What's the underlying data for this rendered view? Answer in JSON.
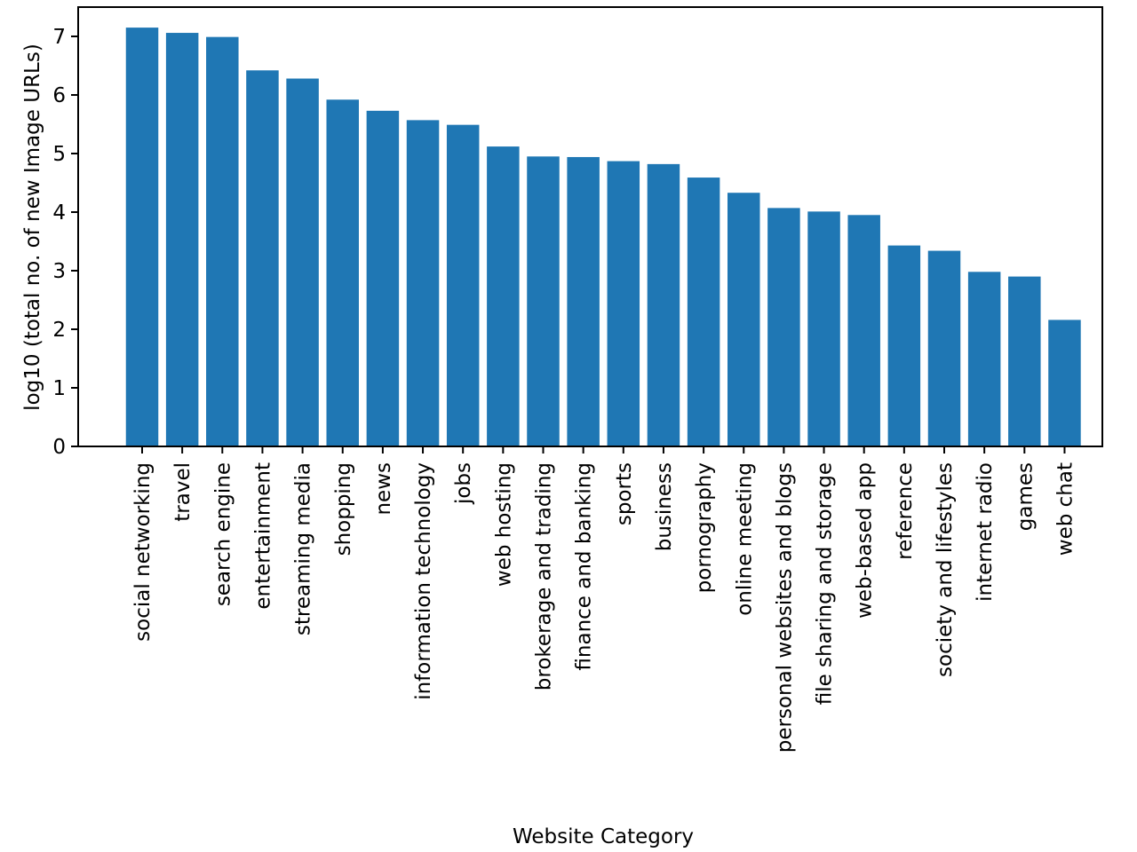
{
  "chart_data": {
    "type": "bar",
    "title": "",
    "xlabel": "Website Category",
    "ylabel": "log10 (total no. of new Image URLs)",
    "ylim": [
      0,
      7.5
    ],
    "yticks": [
      "0",
      "1",
      "2",
      "3",
      "4",
      "5",
      "6",
      "7"
    ],
    "grid": false,
    "bar_color": "#1f77b4",
    "categories": [
      "social networking",
      "travel",
      "search engine",
      "entertainment",
      "streaming media",
      "shopping",
      "news",
      "information technology",
      "jobs",
      "web hosting",
      "brokerage and trading",
      "finance and banking",
      "sports",
      "business",
      "pornography",
      "online meeting",
      "personal websites and blogs",
      "file sharing and storage",
      "web-based app",
      "reference",
      "society and lifestyles",
      "internet radio",
      "games",
      "web chat"
    ],
    "values": [
      7.15,
      7.06,
      6.99,
      6.42,
      6.28,
      5.92,
      5.73,
      5.57,
      5.49,
      5.12,
      4.95,
      4.94,
      4.87,
      4.82,
      4.59,
      4.33,
      4.07,
      4.01,
      3.95,
      3.43,
      3.34,
      2.98,
      2.9,
      2.16
    ]
  }
}
